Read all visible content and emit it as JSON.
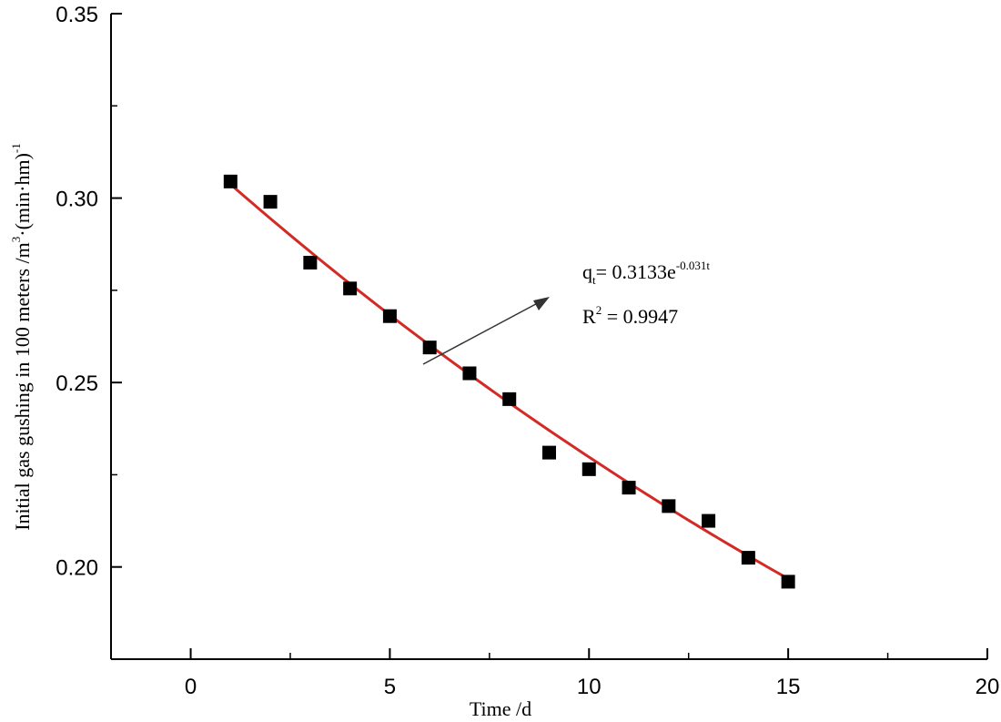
{
  "chart_data": {
    "type": "scatter",
    "title": "",
    "xlabel": "Time /d",
    "ylabel": {
      "main": "Initial gas gushing in 100 meters  /m",
      "sup1": "3",
      "mid": "·(min·hm)",
      "sup2": "-1"
    },
    "xlim": [
      -2,
      20
    ],
    "ylim": [
      0.175,
      0.35
    ],
    "x_ticks": [
      0,
      5,
      10,
      15,
      20
    ],
    "x_tick_labels": [
      "0",
      "5",
      "10",
      "15",
      "20"
    ],
    "y_ticks": [
      0.2,
      0.25,
      0.3,
      0.35
    ],
    "y_tick_labels": [
      "0.20",
      "0.25",
      "0.30",
      "0.35"
    ],
    "grid": false,
    "series": [
      {
        "kind": "points",
        "marker": "square",
        "color": "#000000",
        "x": [
          1,
          2,
          3,
          4,
          5,
          6,
          7,
          8,
          9,
          10,
          11,
          12,
          13,
          14,
          15
        ],
        "y": [
          0.3045,
          0.299,
          0.2825,
          0.2755,
          0.268,
          0.2595,
          0.2525,
          0.2455,
          0.231,
          0.2265,
          0.2215,
          0.2165,
          0.2125,
          0.2025,
          0.196
        ]
      },
      {
        "kind": "fit",
        "color": "#d42a25",
        "equation": {
          "a": 0.3133,
          "b": -0.031
        },
        "x_range": [
          1,
          15
        ]
      }
    ],
    "annotation": {
      "line1_prefix": "q",
      "line1_sub": "t",
      "line1_mid": "= 0.3133e",
      "line1_sup": "-0.031t",
      "line2_prefix": "R",
      "line2_sup": "2",
      "line2_rest": " = 0.9947",
      "arrow_color": "#333333"
    }
  }
}
